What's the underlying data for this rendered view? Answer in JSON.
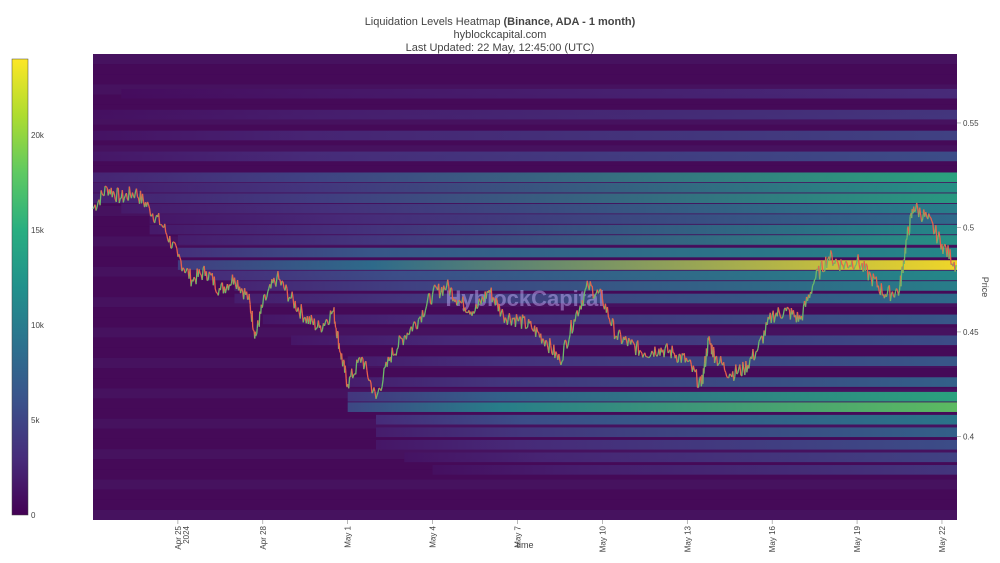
{
  "header": {
    "title_prefix": "Liquidation Levels Heatmap ",
    "title_bold": "(Binance, ADA - 1 month)",
    "subtitle": "hyblockcapital.com",
    "updated": "Last Updated: 22 May, 12:45:00 (UTC)"
  },
  "watermark": "HyblockCapital",
  "colors": {
    "viridis": [
      "#440154",
      "#472d7b",
      "#3b528b",
      "#2c728e",
      "#21918c",
      "#28ae80",
      "#5ec962",
      "#addc30",
      "#fde725"
    ],
    "price_up": "#6db86b",
    "price_down": "#e8604c"
  },
  "chart_data": {
    "type": "heatmap",
    "xlabel": "time",
    "ylabel": "Price",
    "x_range": [
      "2024-04-22",
      "2024-05-22 12:45"
    ],
    "y_range": [
      0.36,
      0.583
    ],
    "x_ticks": [
      {
        "label": "Apr 25",
        "sub": "2024",
        "date": "2024-04-25"
      },
      {
        "label": "Apr 28",
        "date": "2024-04-28"
      },
      {
        "label": "May 1",
        "date": "2024-05-01"
      },
      {
        "label": "May 4",
        "date": "2024-05-04"
      },
      {
        "label": "May 7",
        "date": "2024-05-07"
      },
      {
        "label": "May 10",
        "date": "2024-05-10"
      },
      {
        "label": "May 13",
        "date": "2024-05-13"
      },
      {
        "label": "May 16",
        "date": "2024-05-16"
      },
      {
        "label": "May 19",
        "date": "2024-05-19"
      },
      {
        "label": "May 22",
        "date": "2024-05-22"
      }
    ],
    "y_ticks": [
      {
        "label": "0.4",
        "value": 0.4
      },
      {
        "label": "0.45",
        "value": 0.45
      },
      {
        "label": "0.5",
        "value": 0.5
      },
      {
        "label": "0.55",
        "value": 0.55
      }
    ],
    "colorbar": {
      "min": 0,
      "max": 24000,
      "ticks": [
        {
          "label": "0",
          "value": 0
        },
        {
          "label": "5k",
          "value": 5000
        },
        {
          "label": "10k",
          "value": 10000
        },
        {
          "label": "15k",
          "value": 15000
        },
        {
          "label": "20k",
          "value": 20000
        }
      ]
    },
    "bands": [
      {
        "price": 0.524,
        "start": "2024-04-22",
        "v0": 5000,
        "v1": 15000
      },
      {
        "price": 0.519,
        "start": "2024-04-22",
        "v0": 4000,
        "v1": 13000
      },
      {
        "price": 0.514,
        "start": "2024-04-22",
        "v0": 4500,
        "v1": 14000
      },
      {
        "price": 0.509,
        "start": "2024-04-23",
        "v0": 3500,
        "v1": 11000
      },
      {
        "price": 0.504,
        "start": "2024-04-24",
        "v0": 3000,
        "v1": 9000
      },
      {
        "price": 0.499,
        "start": "2024-04-24",
        "v0": 3500,
        "v1": 12000
      },
      {
        "price": 0.494,
        "start": "2024-04-25",
        "v0": 4000,
        "v1": 13000
      },
      {
        "price": 0.488,
        "start": "2024-04-25",
        "v0": 7000,
        "v1": 12000
      },
      {
        "price": 0.482,
        "start": "2024-04-25",
        "v0": 9000,
        "v1": 24000
      },
      {
        "price": 0.477,
        "start": "2024-04-26",
        "v0": 6000,
        "v1": 12000
      },
      {
        "price": 0.472,
        "start": "2024-04-27",
        "v0": 5000,
        "v1": 11000
      },
      {
        "price": 0.466,
        "start": "2024-04-27",
        "v0": 4000,
        "v1": 9000
      },
      {
        "price": 0.456,
        "start": "2024-04-28",
        "v0": 3000,
        "v1": 7000
      },
      {
        "price": 0.446,
        "start": "2024-04-29",
        "v0": 3000,
        "v1": 6000
      },
      {
        "price": 0.436,
        "start": "2024-05-01",
        "v0": 3500,
        "v1": 7000
      },
      {
        "price": 0.426,
        "start": "2024-05-01",
        "v0": 4000,
        "v1": 8000
      },
      {
        "price": 0.419,
        "start": "2024-05-01",
        "v0": 8000,
        "v1": 15000
      },
      {
        "price": 0.414,
        "start": "2024-05-01",
        "v0": 11000,
        "v1": 18000
      },
      {
        "price": 0.408,
        "start": "2024-05-02",
        "v0": 6000,
        "v1": 10000
      },
      {
        "price": 0.402,
        "start": "2024-05-02",
        "v0": 4000,
        "v1": 8000
      },
      {
        "price": 0.396,
        "start": "2024-05-02",
        "v0": 3000,
        "v1": 6000
      },
      {
        "price": 0.39,
        "start": "2024-05-03",
        "v0": 2500,
        "v1": 5000
      },
      {
        "price": 0.384,
        "start": "2024-05-04",
        "v0": 2000,
        "v1": 4000
      },
      {
        "price": 0.534,
        "start": "2024-04-22",
        "v0": 3000,
        "v1": 6000
      },
      {
        "price": 0.544,
        "start": "2024-04-22",
        "v0": 2500,
        "v1": 5000
      },
      {
        "price": 0.554,
        "start": "2024-04-22",
        "v0": 2000,
        "v1": 4000
      },
      {
        "price": 0.564,
        "start": "2024-04-23",
        "v0": 1500,
        "v1": 3000
      }
    ],
    "price_series": [
      [
        "2024-04-22 00:00",
        0.509
      ],
      [
        "2024-04-22 12:00",
        0.519
      ],
      [
        "2024-04-23 00:00",
        0.514
      ],
      [
        "2024-04-23 12:00",
        0.517
      ],
      [
        "2024-04-24 00:00",
        0.509
      ],
      [
        "2024-04-24 12:00",
        0.5
      ],
      [
        "2024-04-25 00:00",
        0.486
      ],
      [
        "2024-04-25 12:00",
        0.475
      ],
      [
        "2024-04-26 00:00",
        0.479
      ],
      [
        "2024-04-26 12:00",
        0.47
      ],
      [
        "2024-04-27 00:00",
        0.476
      ],
      [
        "2024-04-27 12:00",
        0.466
      ],
      [
        "2024-04-27 18:00",
        0.448
      ],
      [
        "2024-04-28 00:00",
        0.463
      ],
      [
        "2024-04-28 12:00",
        0.476
      ],
      [
        "2024-04-29 00:00",
        0.466
      ],
      [
        "2024-04-29 12:00",
        0.457
      ],
      [
        "2024-04-30 00:00",
        0.452
      ],
      [
        "2024-04-30 12:00",
        0.46
      ],
      [
        "2024-04-30 18:00",
        0.44
      ],
      [
        "2024-05-01 00:00",
        0.425
      ],
      [
        "2024-05-01 12:00",
        0.438
      ],
      [
        "2024-05-02 00:00",
        0.418
      ],
      [
        "2024-05-02 12:00",
        0.438
      ],
      [
        "2024-05-03 00:00",
        0.448
      ],
      [
        "2024-05-03 12:00",
        0.456
      ],
      [
        "2024-05-04 00:00",
        0.468
      ],
      [
        "2024-05-04 12:00",
        0.472
      ],
      [
        "2024-05-05 00:00",
        0.464
      ],
      [
        "2024-05-05 12:00",
        0.46
      ],
      [
        "2024-05-06 00:00",
        0.47
      ],
      [
        "2024-05-06 12:00",
        0.458
      ],
      [
        "2024-05-07 00:00",
        0.456
      ],
      [
        "2024-05-07 12:00",
        0.452
      ],
      [
        "2024-05-08 00:00",
        0.446
      ],
      [
        "2024-05-08 12:00",
        0.436
      ],
      [
        "2024-05-09 00:00",
        0.456
      ],
      [
        "2024-05-09 12:00",
        0.472
      ],
      [
        "2024-05-10 00:00",
        0.466
      ],
      [
        "2024-05-10 12:00",
        0.448
      ],
      [
        "2024-05-11 00:00",
        0.444
      ],
      [
        "2024-05-11 12:00",
        0.44
      ],
      [
        "2024-05-12 00:00",
        0.442
      ],
      [
        "2024-05-12 12:00",
        0.44
      ],
      [
        "2024-05-13 00:00",
        0.436
      ],
      [
        "2024-05-13 12:00",
        0.424
      ],
      [
        "2024-05-13 18:00",
        0.446
      ],
      [
        "2024-05-14 00:00",
        0.438
      ],
      [
        "2024-05-14 12:00",
        0.43
      ],
      [
        "2024-05-15 00:00",
        0.432
      ],
      [
        "2024-05-15 12:00",
        0.442
      ],
      [
        "2024-05-16 00:00",
        0.458
      ],
      [
        "2024-05-16 12:00",
        0.46
      ],
      [
        "2024-05-17 00:00",
        0.456
      ],
      [
        "2024-05-17 12:00",
        0.475
      ],
      [
        "2024-05-18 00:00",
        0.486
      ],
      [
        "2024-05-18 12:00",
        0.482
      ],
      [
        "2024-05-19 00:00",
        0.484
      ],
      [
        "2024-05-19 12:00",
        0.476
      ],
      [
        "2024-05-20 00:00",
        0.468
      ],
      [
        "2024-05-20 12:00",
        0.47
      ],
      [
        "2024-05-20 18:00",
        0.494
      ],
      [
        "2024-05-21 00:00",
        0.51
      ],
      [
        "2024-05-21 12:00",
        0.504
      ],
      [
        "2024-05-22 00:00",
        0.492
      ],
      [
        "2024-05-22 12:00",
        0.482
      ]
    ]
  }
}
